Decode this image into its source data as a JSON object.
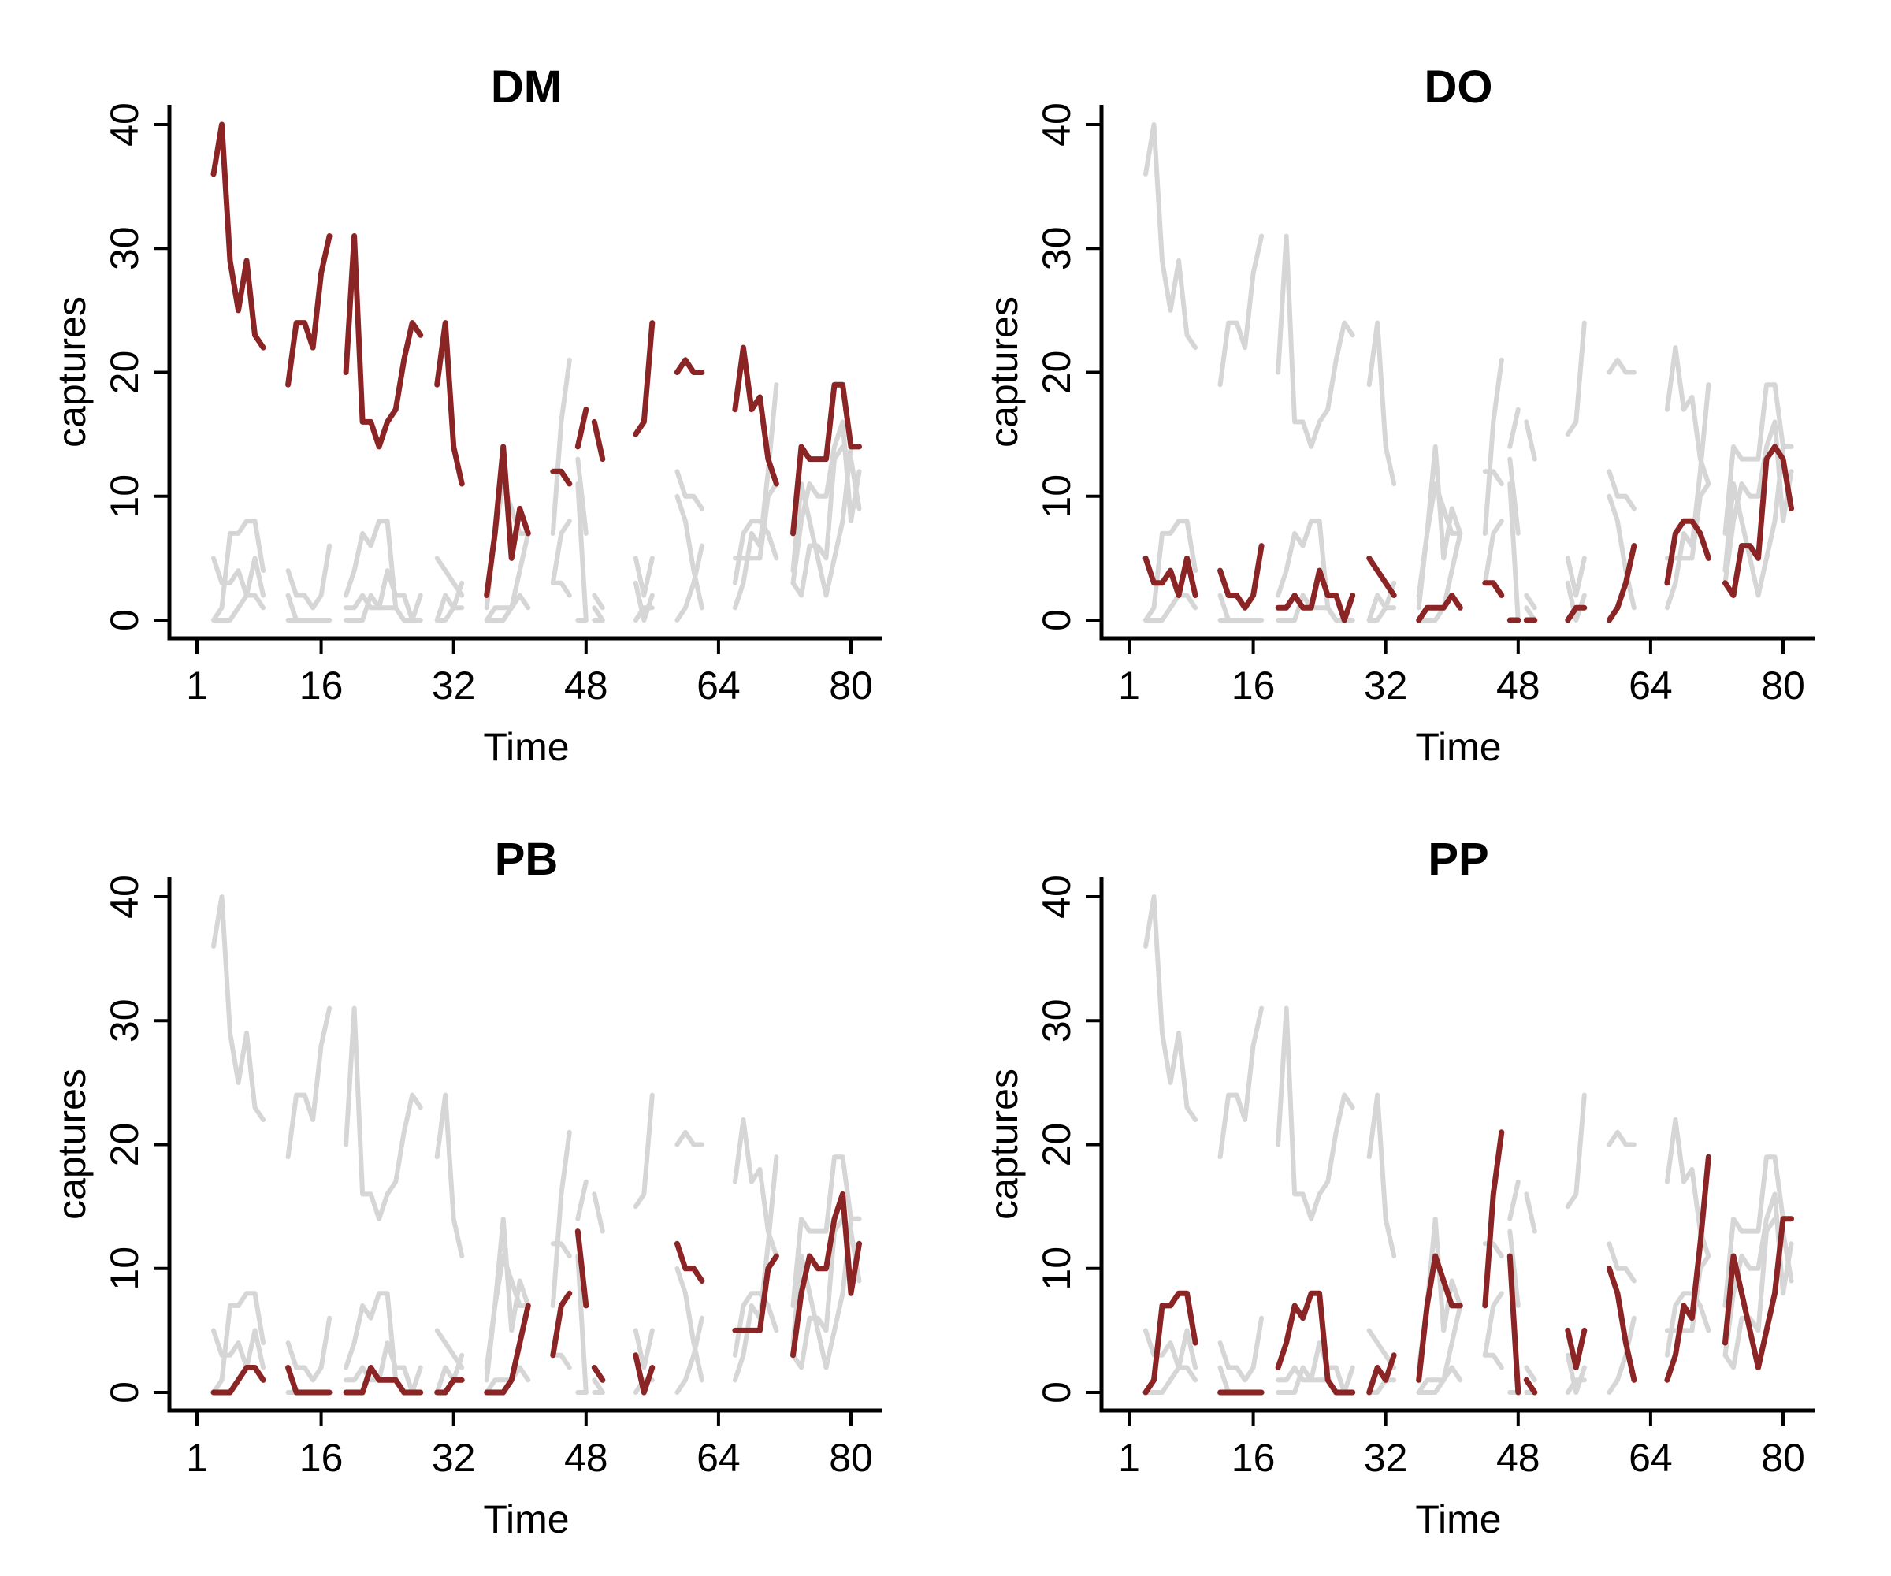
{
  "colors": {
    "highlight": "#8b2525",
    "background_series": "#d6d6d6",
    "axis": "#000000"
  },
  "chart_data": [
    {
      "type": "line",
      "title": "DM",
      "xlabel": "Time",
      "ylabel": "captures",
      "xlim": [
        1,
        80
      ],
      "ylim": [
        0,
        40
      ],
      "xticks": [
        1,
        16,
        32,
        48,
        64,
        80
      ],
      "yticks": [
        0,
        10,
        20,
        30,
        40
      ],
      "highlight": "DM"
    },
    {
      "type": "line",
      "title": "DO",
      "xlabel": "Time",
      "ylabel": "captures",
      "xlim": [
        1,
        80
      ],
      "ylim": [
        0,
        40
      ],
      "xticks": [
        1,
        16,
        32,
        48,
        64,
        80
      ],
      "yticks": [
        0,
        10,
        20,
        30,
        40
      ],
      "highlight": "DO"
    },
    {
      "type": "line",
      "title": "PB",
      "xlabel": "Time",
      "ylabel": "captures",
      "xlim": [
        1,
        80
      ],
      "ylim": [
        0,
        40
      ],
      "xticks": [
        1,
        16,
        32,
        48,
        64,
        80
      ],
      "yticks": [
        0,
        10,
        20,
        30,
        40
      ],
      "highlight": "PB"
    },
    {
      "type": "line",
      "title": "PP",
      "xlabel": "Time",
      "ylabel": "captures",
      "xlim": [
        1,
        80
      ],
      "ylim": [
        0,
        40
      ],
      "xticks": [
        1,
        16,
        32,
        48,
        64,
        80
      ],
      "yticks": [
        0,
        10,
        20,
        30,
        40
      ],
      "highlight": "PP"
    }
  ],
  "series": {
    "DM": [
      [
        [
          3,
          36
        ],
        [
          4,
          40
        ],
        [
          5,
          29
        ],
        [
          6,
          25
        ],
        [
          7,
          29
        ],
        [
          8,
          23
        ],
        [
          9,
          22
        ]
      ],
      [
        [
          12,
          19
        ],
        [
          13,
          24
        ],
        [
          14,
          24
        ],
        [
          15,
          22
        ],
        [
          16,
          28
        ],
        [
          17,
          31
        ]
      ],
      [
        [
          19,
          20
        ],
        [
          20,
          31
        ],
        [
          21,
          16
        ],
        [
          22,
          16
        ],
        [
          23,
          14
        ],
        [
          24,
          16
        ],
        [
          25,
          17
        ],
        [
          26,
          21
        ],
        [
          27,
          24
        ],
        [
          28,
          23
        ]
      ],
      [
        [
          30,
          19
        ],
        [
          31,
          24
        ],
        [
          32,
          14
        ],
        [
          33,
          11
        ]
      ],
      [
        [
          36,
          2
        ],
        [
          37,
          7
        ],
        [
          38,
          14
        ],
        [
          39,
          5
        ],
        [
          40,
          9
        ],
        [
          41,
          7
        ]
      ],
      [
        [
          44,
          12
        ],
        [
          45,
          12
        ],
        [
          46,
          11
        ]
      ],
      [
        [
          47,
          14
        ],
        [
          48,
          17
        ]
      ],
      [
        [
          49,
          16
        ],
        [
          50,
          13
        ]
      ],
      [
        [
          54,
          15
        ],
        [
          55,
          16
        ],
        [
          56,
          24
        ]
      ],
      [
        [
          59,
          20
        ],
        [
          60,
          21
        ],
        [
          61,
          20
        ],
        [
          62,
          20
        ]
      ],
      [
        [
          66,
          17
        ],
        [
          67,
          22
        ],
        [
          68,
          17
        ],
        [
          69,
          18
        ],
        [
          70,
          13
        ],
        [
          71,
          11
        ]
      ],
      [
        [
          73,
          7
        ],
        [
          74,
          14
        ],
        [
          75,
          13
        ],
        [
          76,
          13
        ],
        [
          77,
          13
        ],
        [
          78,
          19
        ],
        [
          79,
          19
        ],
        [
          80,
          14
        ],
        [
          81,
          14
        ]
      ]
    ],
    "DO": [
      [
        [
          3,
          5
        ],
        [
          4,
          3
        ],
        [
          5,
          3
        ],
        [
          6,
          4
        ],
        [
          7,
          2
        ],
        [
          8,
          5
        ],
        [
          9,
          2
        ]
      ],
      [
        [
          12,
          4
        ],
        [
          13,
          2
        ],
        [
          14,
          2
        ],
        [
          15,
          1
        ],
        [
          16,
          2
        ],
        [
          17,
          6
        ]
      ],
      [
        [
          19,
          1
        ],
        [
          20,
          1
        ],
        [
          21,
          2
        ],
        [
          22,
          1
        ],
        [
          23,
          1
        ],
        [
          24,
          4
        ],
        [
          25,
          2
        ],
        [
          26,
          2
        ],
        [
          27,
          0
        ],
        [
          28,
          2
        ]
      ],
      [
        [
          30,
          5
        ],
        [
          31,
          4
        ],
        [
          32,
          3
        ],
        [
          33,
          2
        ]
      ],
      [
        [
          36,
          0
        ],
        [
          37,
          1
        ],
        [
          38,
          1
        ],
        [
          39,
          1
        ],
        [
          40,
          2
        ],
        [
          41,
          1
        ]
      ],
      [
        [
          44,
          3
        ],
        [
          45,
          3
        ],
        [
          46,
          2
        ]
      ],
      [
        [
          47,
          0
        ],
        [
          48,
          0
        ]
      ],
      [
        [
          49,
          0
        ],
        [
          50,
          0
        ]
      ],
      [
        [
          54,
          0
        ],
        [
          55,
          1
        ],
        [
          56,
          1
        ]
      ],
      [
        [
          59,
          0
        ],
        [
          60,
          1
        ],
        [
          61,
          3
        ],
        [
          62,
          6
        ]
      ],
      [
        [
          66,
          3
        ],
        [
          67,
          7
        ],
        [
          68,
          8
        ],
        [
          69,
          8
        ],
        [
          70,
          7
        ],
        [
          71,
          5
        ]
      ],
      [
        [
          73,
          3
        ],
        [
          74,
          2
        ],
        [
          75,
          6
        ],
        [
          76,
          6
        ],
        [
          77,
          5
        ],
        [
          78,
          13
        ],
        [
          79,
          14
        ],
        [
          80,
          13
        ],
        [
          81,
          9
        ]
      ]
    ],
    "PB": [
      [
        [
          3,
          0
        ],
        [
          4,
          0
        ],
        [
          5,
          0
        ],
        [
          6,
          1
        ],
        [
          7,
          2
        ],
        [
          8,
          2
        ],
        [
          9,
          1
        ]
      ],
      [
        [
          12,
          2
        ],
        [
          13,
          0
        ],
        [
          14,
          0
        ],
        [
          15,
          0
        ],
        [
          16,
          0
        ],
        [
          17,
          0
        ]
      ],
      [
        [
          19,
          0
        ],
        [
          20,
          0
        ],
        [
          21,
          0
        ],
        [
          22,
          2
        ],
        [
          23,
          1
        ],
        [
          24,
          1
        ],
        [
          25,
          1
        ],
        [
          26,
          0
        ],
        [
          27,
          0
        ],
        [
          28,
          0
        ]
      ],
      [
        [
          30,
          0
        ],
        [
          31,
          0
        ],
        [
          32,
          1
        ],
        [
          33,
          1
        ]
      ],
      [
        [
          36,
          0
        ],
        [
          37,
          0
        ],
        [
          38,
          0
        ],
        [
          39,
          1
        ],
        [
          40,
          4
        ],
        [
          41,
          7
        ]
      ],
      [
        [
          44,
          3
        ],
        [
          45,
          7
        ],
        [
          46,
          8
        ]
      ],
      [
        [
          47,
          13
        ],
        [
          48,
          7
        ]
      ],
      [
        [
          49,
          2
        ],
        [
          50,
          1
        ]
      ],
      [
        [
          54,
          3
        ],
        [
          55,
          0
        ],
        [
          56,
          2
        ]
      ],
      [
        [
          59,
          12
        ],
        [
          60,
          10
        ],
        [
          61,
          10
        ],
        [
          62,
          9
        ]
      ],
      [
        [
          66,
          5
        ],
        [
          67,
          5
        ],
        [
          68,
          5
        ],
        [
          69,
          5
        ],
        [
          70,
          10
        ],
        [
          71,
          11
        ]
      ],
      [
        [
          73,
          3
        ],
        [
          74,
          8
        ],
        [
          75,
          11
        ],
        [
          76,
          10
        ],
        [
          77,
          10
        ],
        [
          78,
          14
        ],
        [
          79,
          16
        ],
        [
          80,
          8
        ],
        [
          81,
          12
        ]
      ]
    ],
    "PP": [
      [
        [
          3,
          0
        ],
        [
          4,
          1
        ],
        [
          5,
          7
        ],
        [
          6,
          7
        ],
        [
          7,
          8
        ],
        [
          8,
          8
        ],
        [
          9,
          4
        ]
      ],
      [
        [
          12,
          0
        ],
        [
          13,
          0
        ],
        [
          14,
          0
        ],
        [
          15,
          0
        ],
        [
          16,
          0
        ],
        [
          17,
          0
        ]
      ],
      [
        [
          19,
          2
        ],
        [
          20,
          4
        ],
        [
          21,
          7
        ],
        [
          22,
          6
        ],
        [
          23,
          8
        ],
        [
          24,
          8
        ],
        [
          25,
          1
        ],
        [
          26,
          0
        ],
        [
          27,
          0
        ],
        [
          28,
          0
        ]
      ],
      [
        [
          30,
          0
        ],
        [
          31,
          2
        ],
        [
          32,
          1
        ],
        [
          33,
          3
        ]
      ],
      [
        [
          36,
          1
        ],
        [
          37,
          7
        ],
        [
          38,
          11
        ],
        [
          39,
          9
        ],
        [
          40,
          7
        ],
        [
          41,
          7
        ]
      ],
      [
        [
          44,
          7
        ],
        [
          45,
          16
        ],
        [
          46,
          21
        ]
      ],
      [
        [
          47,
          11
        ],
        [
          48,
          0
        ]
      ],
      [
        [
          49,
          1
        ],
        [
          50,
          0
        ]
      ],
      [
        [
          54,
          5
        ],
        [
          55,
          2
        ],
        [
          56,
          5
        ]
      ],
      [
        [
          59,
          10
        ],
        [
          60,
          8
        ],
        [
          61,
          4
        ],
        [
          62,
          1
        ]
      ],
      [
        [
          66,
          1
        ],
        [
          67,
          3
        ],
        [
          68,
          7
        ],
        [
          69,
          6
        ],
        [
          70,
          12
        ],
        [
          71,
          19
        ]
      ],
      [
        [
          73,
          4
        ],
        [
          74,
          11
        ],
        [
          75,
          8
        ],
        [
          76,
          5
        ],
        [
          77,
          2
        ],
        [
          78,
          5
        ],
        [
          79,
          8
        ],
        [
          80,
          14
        ],
        [
          81,
          14
        ]
      ]
    ]
  }
}
